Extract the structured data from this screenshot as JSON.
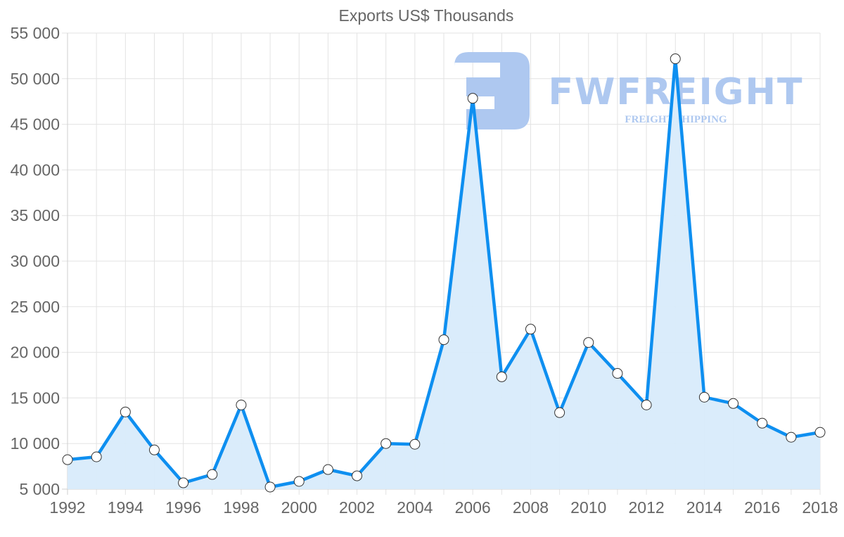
{
  "chart_data": {
    "type": "line",
    "title": "Exports US$ Thousands",
    "xlabel": "",
    "ylabel": "",
    "x": [
      1992,
      1993,
      1994,
      1995,
      1996,
      1997,
      1998,
      1999,
      2000,
      2001,
      2002,
      2003,
      2004,
      2005,
      2006,
      2007,
      2008,
      2009,
      2010,
      2011,
      2012,
      2013,
      2014,
      2015,
      2016,
      2017,
      2018
    ],
    "series": [
      {
        "name": "Exports US$ Thousands",
        "values": [
          8230,
          8540,
          13460,
          9300,
          5690,
          6610,
          14230,
          5230,
          5850,
          7150,
          6460,
          10000,
          9920,
          21380,
          47850,
          17310,
          22540,
          13390,
          21080,
          17690,
          14230,
          52180,
          15080,
          14390,
          12230,
          10690,
          11230
        ],
        "fill": true
      }
    ],
    "ylim": [
      5000,
      55000
    ],
    "yticks": [
      5000,
      10000,
      15000,
      20000,
      25000,
      30000,
      35000,
      40000,
      45000,
      50000,
      55000
    ],
    "ytick_labels": [
      "5 000",
      "10 000",
      "15 000",
      "20 000",
      "25 000",
      "30 000",
      "35 000",
      "40 000",
      "45 000",
      "50 000",
      "55 000"
    ],
    "xticks": [
      1992,
      1994,
      1996,
      1998,
      2000,
      2002,
      2004,
      2006,
      2008,
      2010,
      2012,
      2014,
      2016,
      2018
    ],
    "xtick_labels": [
      "1992",
      "1994",
      "1996",
      "1998",
      "2000",
      "2002",
      "2004",
      "2006",
      "2008",
      "2010",
      "2012",
      "2014",
      "2016",
      "2018"
    ],
    "grid": true,
    "legend": "none"
  },
  "watermark": {
    "brand": "FWFREIGHT",
    "tagline": "FREIGHT SHIPPING"
  },
  "colors": {
    "line": "#0e8ff0",
    "fill": "#d8ebfb",
    "point_fill": "#ffffff",
    "point_stroke": "#333333",
    "grid": "#e3e3e3",
    "axis_text": "#666666",
    "watermark": "#aec8f0"
  }
}
